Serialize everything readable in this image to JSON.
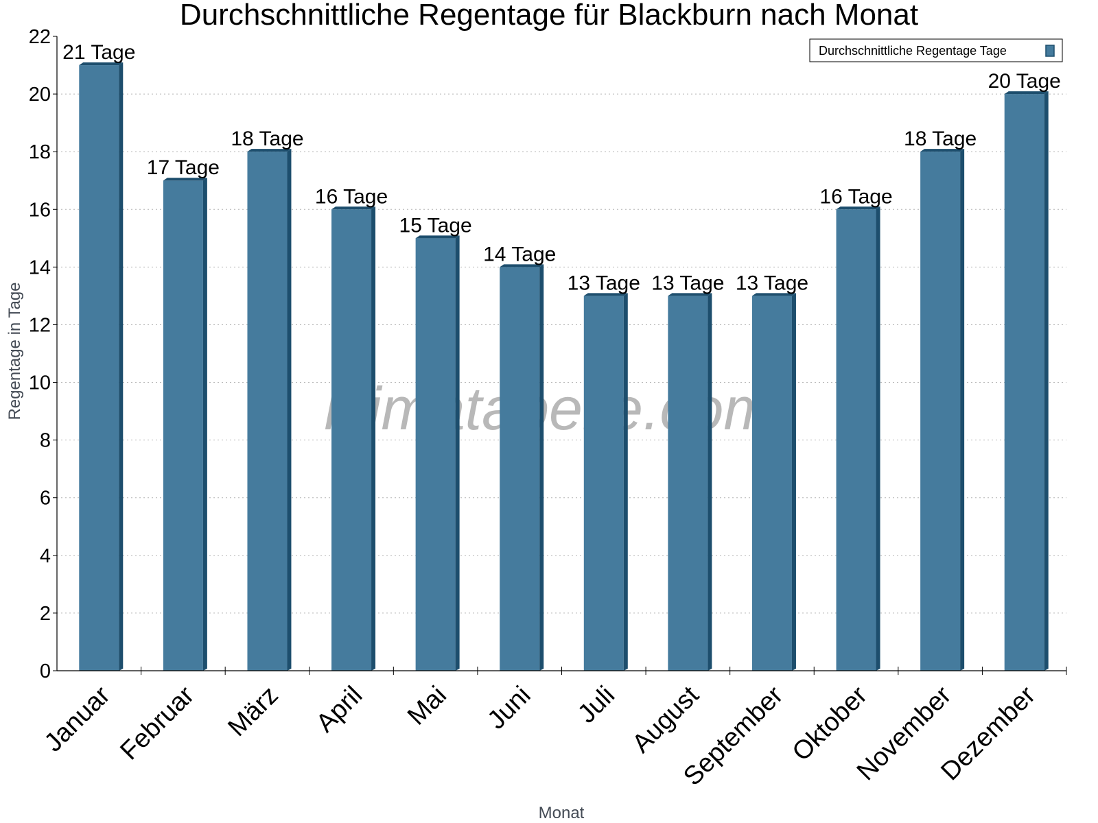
{
  "chart_data": {
    "type": "bar",
    "title": "Durchschnittliche Regentage für Blackburn nach Monat",
    "xlabel": "Monat",
    "ylabel": "Regentage in Tage",
    "categories": [
      "Januar",
      "Februar",
      "März",
      "April",
      "Mai",
      "Juni",
      "Juli",
      "August",
      "September",
      "Oktober",
      "November",
      "Dezember"
    ],
    "series": [
      {
        "name": "Durchschnittliche Regentage Tage",
        "values": [
          21,
          17,
          18,
          16,
          15,
          14,
          13,
          13,
          13,
          16,
          18,
          20
        ],
        "labels": [
          "21 Tage",
          "17 Tage",
          "18 Tage",
          "16 Tage",
          "15 Tage",
          "14 Tage",
          "13 Tage",
          "13 Tage",
          "13 Tage",
          "16 Tage",
          "18 Tage",
          "20 Tage"
        ],
        "color": "#457b9d",
        "color_dark": "#1d4e6d"
      }
    ],
    "ylim": [
      0,
      22
    ],
    "yticks": [
      0,
      2,
      4,
      6,
      8,
      10,
      12,
      14,
      16,
      18,
      20,
      22
    ],
    "grid": true,
    "legend_position": "top-right",
    "watermark": "klimatabelle.com"
  }
}
